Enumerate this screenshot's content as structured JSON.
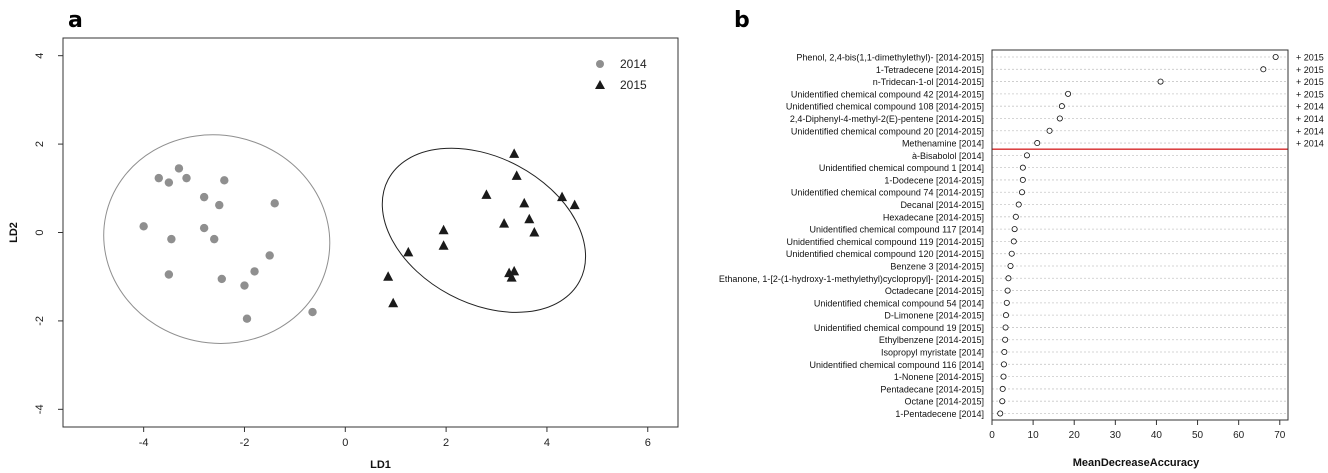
{
  "panels": {
    "a": "a",
    "b": "b"
  },
  "chart_data": [
    {
      "type": "scatter",
      "title": "",
      "xlabel": "LD1",
      "ylabel": "LD2",
      "xlim": [
        -5.6,
        6.6
      ],
      "ylim": [
        -4.4,
        4.4
      ],
      "x_ticks": [
        "-4",
        "-2",
        "0",
        "2",
        "4",
        "6"
      ],
      "y_ticks": [
        "-4",
        "-2",
        "0",
        "2",
        "4"
      ],
      "legend_position": "top-right",
      "series": [
        {
          "name": "2014",
          "marker": "circle",
          "color": "#8f8f8f",
          "points": [
            [
              -3.3,
              1.45
            ],
            [
              -3.7,
              1.23
            ],
            [
              -3.5,
              1.13
            ],
            [
              -3.15,
              1.23
            ],
            [
              -2.4,
              1.18
            ],
            [
              -2.8,
              0.8
            ],
            [
              -2.5,
              0.62
            ],
            [
              -1.4,
              0.66
            ],
            [
              -4.0,
              0.14
            ],
            [
              -2.8,
              0.1
            ],
            [
              -3.45,
              -0.15
            ],
            [
              -2.6,
              -0.15
            ],
            [
              -1.5,
              -0.52
            ],
            [
              -3.5,
              -0.95
            ],
            [
              -1.8,
              -0.88
            ],
            [
              -2.45,
              -1.05
            ],
            [
              -2.0,
              -1.2
            ],
            [
              -1.95,
              -1.95
            ],
            [
              -0.65,
              -1.8
            ]
          ]
        },
        {
          "name": "2015",
          "marker": "triangle",
          "color": "#1a1a1a",
          "points": [
            [
              3.35,
              1.78
            ],
            [
              3.4,
              1.28
            ],
            [
              2.8,
              0.85
            ],
            [
              4.3,
              0.8
            ],
            [
              4.55,
              0.62
            ],
            [
              3.55,
              0.66
            ],
            [
              3.65,
              0.3
            ],
            [
              3.15,
              0.2
            ],
            [
              3.75,
              0.0
            ],
            [
              1.95,
              0.05
            ],
            [
              1.95,
              -0.3
            ],
            [
              1.25,
              -0.45
            ],
            [
              0.85,
              -1.0
            ],
            [
              3.25,
              -0.92
            ],
            [
              3.35,
              -0.88
            ],
            [
              3.3,
              -1.02
            ],
            [
              0.95,
              -1.6
            ]
          ]
        }
      ],
      "ellipses": [
        {
          "group": "2014",
          "center": [
            -2.55,
            -0.15
          ],
          "rx": 2.25,
          "ry": 2.35,
          "rotation_deg": 12,
          "color": "#8f8f8f"
        },
        {
          "group": "2015",
          "center": [
            2.75,
            0.05
          ],
          "rx": 2.15,
          "ry": 1.65,
          "rotation_deg": 28,
          "color": "#222222"
        }
      ]
    },
    {
      "type": "scatter",
      "subtype": "dotchart",
      "title": "",
      "xlabel": "MeanDecreaseAccuracy",
      "xlim": [
        0,
        72
      ],
      "x_ticks": [
        "0",
        "10",
        "20",
        "30",
        "40",
        "50",
        "60",
        "70"
      ],
      "cutoff_after_index": 7,
      "cutoff_color": "#d62728",
      "items": [
        {
          "label": "Phenol, 2,4-bis(1,1-dimethylethyl)- [2014-2015]",
          "value": 69,
          "tag": "+ 2015"
        },
        {
          "label": "1-Tetradecene [2014-2015]",
          "value": 66,
          "tag": "+ 2015"
        },
        {
          "label": "n-Tridecan-1-ol [2014-2015]",
          "value": 41,
          "tag": "+ 2015"
        },
        {
          "label": "Unidentified chemical compound 42 [2014-2015]",
          "value": 18.5,
          "tag": "+ 2015"
        },
        {
          "label": "Unidentified chemical compound 108 [2014-2015]",
          "value": 17,
          "tag": "+ 2014"
        },
        {
          "label": "2,4-Diphenyl-4-methyl-2(E)-pentene [2014-2015]",
          "value": 16.5,
          "tag": "+ 2014"
        },
        {
          "label": "Unidentified chemical compound 20 [2014-2015]",
          "value": 14,
          "tag": "+ 2014"
        },
        {
          "label": "Methenamine [2014]",
          "value": 11,
          "tag": "+ 2014"
        },
        {
          "label": "à-Bisabolol [2014]",
          "value": 8.5,
          "tag": ""
        },
        {
          "label": "Unidentified chemical compound 1 [2014]",
          "value": 7.5,
          "tag": ""
        },
        {
          "label": "1-Dodecene [2014-2015]",
          "value": 7.5,
          "tag": ""
        },
        {
          "label": "Unidentified chemical compound 74 [2014-2015]",
          "value": 7.3,
          "tag": ""
        },
        {
          "label": "Decanal [2014-2015]",
          "value": 6.5,
          "tag": ""
        },
        {
          "label": "Hexadecane [2014-2015]",
          "value": 5.8,
          "tag": ""
        },
        {
          "label": "Unidentified chemical compound 117 [2014]",
          "value": 5.5,
          "tag": ""
        },
        {
          "label": "Unidentified chemical compound 119 [2014-2015]",
          "value": 5.3,
          "tag": ""
        },
        {
          "label": "Unidentified chemical compound 120 [2014-2015]",
          "value": 4.8,
          "tag": ""
        },
        {
          "label": "Benzene 3 [2014-2015]",
          "value": 4.5,
          "tag": ""
        },
        {
          "label": "Ethanone, 1-[2-(1-hydroxy-1-methylethyl)cyclopropyl]- [2014-2015]",
          "value": 4.0,
          "tag": ""
        },
        {
          "label": "Octadecane [2014-2015]",
          "value": 3.8,
          "tag": ""
        },
        {
          "label": "Unidentified chemical compound 54 [2014]",
          "value": 3.6,
          "tag": ""
        },
        {
          "label": "D-Limonene [2014-2015]",
          "value": 3.4,
          "tag": ""
        },
        {
          "label": "Unidentified chemical compound 19 [2015]",
          "value": 3.3,
          "tag": ""
        },
        {
          "label": "Ethylbenzene [2014-2015]",
          "value": 3.2,
          "tag": ""
        },
        {
          "label": "Isopropyl myristate [2014]",
          "value": 3.0,
          "tag": ""
        },
        {
          "label": "Unidentified chemical compound 116 [2014]",
          "value": 2.9,
          "tag": ""
        },
        {
          "label": "1-Nonene [2014-2015]",
          "value": 2.8,
          "tag": ""
        },
        {
          "label": "Pentadecane [2014-2015]",
          "value": 2.6,
          "tag": ""
        },
        {
          "label": "Octane [2014-2015]",
          "value": 2.5,
          "tag": ""
        },
        {
          "label": "1-Pentadecene [2014]",
          "value": 2.0,
          "tag": ""
        }
      ]
    }
  ]
}
